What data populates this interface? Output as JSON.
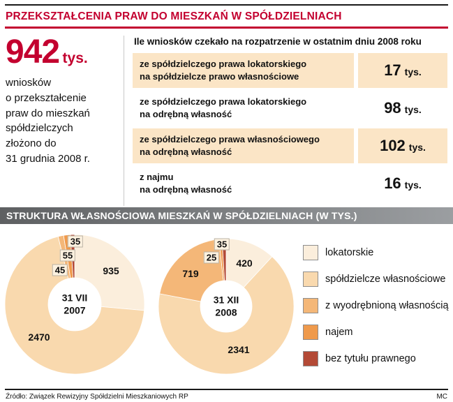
{
  "page": {
    "title": "PRZEKSZTAŁCENIA PRAW DO MIESZKAŃ W SPÓŁDZIELNIACH",
    "source": "Źródło: Związek Rewizyjny Spółdzielni Mieszkaniowych RP",
    "credit": "MC"
  },
  "colors": {
    "accent_red": "#c3002f",
    "row_shade": "#fbe5c6",
    "section_bar_left": "#5e6062",
    "section_bar_right": "#9b9ea1",
    "label_box_bg": "#fdf2e0"
  },
  "summary": {
    "big_number": "942",
    "big_unit": "tys.",
    "lines": [
      "wniosków",
      "o przekształcenie",
      "praw do mieszkań",
      "spółdzielczych",
      "złożono do",
      "31 grudnia 2008 r."
    ]
  },
  "table": {
    "header": "Ile wniosków czekało na rozpatrzenie w ostatnim dniu 2008 roku",
    "rows": [
      {
        "line1": "ze spółdzielczego prawa lokatorskiego",
        "line2": "na spółdzielcze prawo własnościowe",
        "value": "17",
        "unit": "tys.",
        "shaded": true
      },
      {
        "line1": "ze spółdzielczego prawa lokatorskiego",
        "line2": "na odrębną własność",
        "value": "98",
        "unit": "tys.",
        "shaded": false
      },
      {
        "line1": "ze spółdzielczego prawa własnościowego",
        "line2": "na odrębną własność",
        "value": "102",
        "unit": "tys.",
        "shaded": true
      },
      {
        "line1": "z najmu",
        "line2": "na odrębną własność",
        "value": "16",
        "unit": "tys.",
        "shaded": false
      }
    ]
  },
  "section2": {
    "title": "STRUKTURA WŁASNOŚCIOWA MIESZKAŃ W SPÓŁDZIELNIACH (W TYS.)"
  },
  "chart_data": [
    {
      "type": "pie",
      "donut": true,
      "title": "31 VII 2007",
      "center": [
        "31 VII",
        "2007"
      ],
      "categories": [
        "lokatorskie",
        "spółdzielcze własnościowe",
        "z wyodrębnioną własnością",
        "najem",
        "bez tytułu prawnego"
      ],
      "values": [
        935,
        2470,
        45,
        55,
        35
      ],
      "unit": "tys.",
      "start_angle_deg": 0,
      "direction": "clockwise",
      "palette": [
        "#fbeedc",
        "#f9d9ae",
        "#f4b778",
        "#ef9a4c",
        "#b34a36"
      ]
    },
    {
      "type": "pie",
      "donut": true,
      "title": "31 XII 2008",
      "center": [
        "31 XII",
        "2008"
      ],
      "categories": [
        "lokatorskie",
        "spółdzielcze własnościowe",
        "z wyodrębnioną własnością",
        "najem",
        "bez tytułu prawnego"
      ],
      "values": [
        420,
        2341,
        719,
        25,
        35
      ],
      "unit": "tys.",
      "start_angle_deg": 0,
      "direction": "clockwise",
      "palette": [
        "#fbeedc",
        "#f9d9ae",
        "#f4b778",
        "#ef9a4c",
        "#b34a36"
      ]
    }
  ],
  "legend": {
    "position": "right",
    "items": [
      {
        "label": "lokatorskie",
        "color": "#fbeedc"
      },
      {
        "label": "spółdzielcze własnościowe",
        "color": "#f9d9ae"
      },
      {
        "label": "z wyodrębnioną własnością",
        "color": "#f4b778"
      },
      {
        "label": "najem",
        "color": "#ef9a4c"
      },
      {
        "label": "bez tytułu prawnego",
        "color": "#b34a36"
      }
    ]
  }
}
